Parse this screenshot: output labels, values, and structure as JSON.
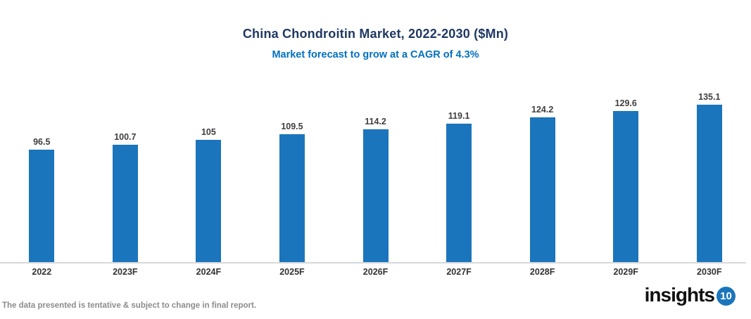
{
  "header": {
    "title": "China Chondroitin Market, 2022-2030 ($Mn)",
    "subtitle": "Market forecast to grow at a CAGR of 4.3%"
  },
  "chart_data": {
    "type": "bar",
    "categories": [
      "2022",
      "2023F",
      "2024F",
      "2025F",
      "2026F",
      "2027F",
      "2028F",
      "2029F",
      "2030F"
    ],
    "values": [
      96.5,
      100.7,
      105,
      109.5,
      114.2,
      119.1,
      124.2,
      129.6,
      135.1
    ],
    "title": "China Chondroitin Market, 2022-2030 ($Mn)",
    "subtitle": "Market forecast to grow at a CAGR of 4.3%",
    "xlabel": "",
    "ylabel": "",
    "ylim": [
      0,
      140
    ],
    "grid": false,
    "legend": "none",
    "data_labels": true,
    "bar_color": "#1B75BC"
  },
  "footer": {
    "disclaimer": "The data presented is tentative & subject to change in final report.",
    "logo_text": "insights",
    "logo_badge": "10"
  },
  "colors": {
    "title": "#1F3864",
    "subtitle": "#0070C0",
    "bar": "#1B75BC",
    "axis_line": "#D8D8D8",
    "value_label": "#3F3F3F",
    "category_label": "#333333",
    "disclaimer": "#8C8C8C",
    "logo_badge_bg": "#1B75BC"
  }
}
